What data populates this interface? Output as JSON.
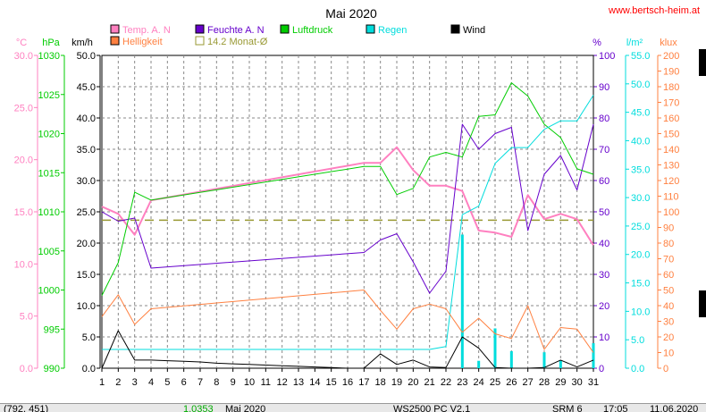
{
  "site": "www.bertsch-heim.at",
  "chart_data": {
    "type": "line",
    "title": "Mai 2020",
    "x": [
      1,
      2,
      3,
      4,
      5,
      6,
      7,
      8,
      9,
      10,
      11,
      12,
      13,
      14,
      15,
      16,
      17,
      18,
      19,
      20,
      21,
      22,
      23,
      24,
      25,
      26,
      27,
      28,
      29,
      30,
      31
    ],
    "x_ticks": [
      "1",
      "2",
      "3",
      "4",
      "5",
      "6",
      "7",
      "8",
      "9",
      "10",
      "11",
      "12",
      "13",
      "14",
      "15",
      "16",
      "17",
      "18",
      "19",
      "20",
      "21",
      "22",
      "23",
      "24",
      "25",
      "26",
      "27",
      "28",
      "29",
      "30",
      "31"
    ],
    "grid": true,
    "axes": {
      "temp": {
        "unit": "°C",
        "ylim": [
          0,
          30
        ],
        "ticks": [
          "0.0",
          "5.0",
          "10.0",
          "15.0",
          "20.0",
          "25.0",
          "30.0"
        ],
        "color": "#ff80c0"
      },
      "pressure": {
        "unit": "hPa",
        "ylim": [
          990,
          1030
        ],
        "ticks": [
          "990",
          "995",
          "1000",
          "1005",
          "1010",
          "1015",
          "1020",
          "1025",
          "1030"
        ],
        "color": "#00cc00"
      },
      "wind": {
        "unit": "km/h",
        "ylim": [
          0,
          50
        ],
        "ticks": [
          "0.0",
          "5.0",
          "10.0",
          "15.0",
          "20.0",
          "25.0",
          "30.0",
          "35.0",
          "40.0",
          "45.0",
          "50.0"
        ],
        "color": "#000000"
      },
      "humidity": {
        "unit": "%",
        "ylim": [
          0,
          100
        ],
        "ticks": [
          "0",
          "10",
          "20",
          "30",
          "40",
          "50",
          "60",
          "70",
          "80",
          "90",
          "100"
        ],
        "color": "#6600cc"
      },
      "rain": {
        "unit": "l/m²",
        "ylim": [
          0,
          55
        ],
        "ticks": [
          "0.0",
          "5.0",
          "10.0",
          "15.0",
          "20.0",
          "25.0",
          "30.0",
          "35.0",
          "40.0",
          "45.0",
          "50.0",
          "55.0"
        ],
        "color": "#00dddd"
      },
      "light": {
        "unit": "klux",
        "ylim": [
          0,
          200
        ],
        "ticks": [
          "0",
          "10",
          "20",
          "30",
          "40",
          "50",
          "60",
          "70",
          "80",
          "90",
          "100",
          "110",
          "120",
          "130",
          "140",
          "150",
          "160",
          "170",
          "180",
          "190",
          "200"
        ],
        "color": "#ff8040"
      }
    },
    "legend": [
      {
        "label": "Temp. A. N",
        "color": "#ff80c0",
        "style": "box"
      },
      {
        "label": "Feuchte A. N",
        "color": "#6600cc",
        "style": "box"
      },
      {
        "label": "Luftdruck",
        "color": "#00cc00",
        "style": "box"
      },
      {
        "label": "Regen",
        "color": "#00dddd",
        "style": "box"
      },
      {
        "label": "Wind",
        "color": "#000000",
        "style": "box"
      },
      {
        "label": "Helligkeit",
        "color": "#ff8040",
        "style": "box"
      },
      {
        "label": "14.2 Monat-Ø",
        "color": "#999933",
        "style": "outline"
      }
    ],
    "series": [
      {
        "name": "Temp. A. N",
        "axis": "temp",
        "color": "#ff80c0",
        "width": 2,
        "values": [
          15.5,
          14.8,
          12.8,
          16.1,
          null,
          null,
          null,
          null,
          null,
          null,
          null,
          null,
          null,
          null,
          null,
          null,
          19.7,
          19.7,
          21.2,
          19.0,
          17.5,
          17.5,
          17.0,
          13.2,
          13.0,
          12.6,
          16.6,
          14.3,
          14.8,
          14.3,
          11.8
        ]
      },
      {
        "name": "Feuchte A. N",
        "axis": "humidity",
        "color": "#6600cc",
        "width": 1,
        "values": [
          50,
          47,
          48,
          32,
          null,
          null,
          null,
          null,
          null,
          null,
          null,
          null,
          null,
          null,
          null,
          null,
          37,
          41,
          43,
          34,
          24,
          31,
          78,
          70,
          75,
          77,
          44,
          62,
          68,
          57,
          78
        ]
      },
      {
        "name": "Luftdruck",
        "axis": "pressure",
        "color": "#00cc00",
        "width": 1,
        "values": [
          999.3,
          1003.5,
          1012.5,
          1011.5,
          null,
          null,
          null,
          null,
          null,
          null,
          null,
          null,
          null,
          null,
          null,
          null,
          1015.8,
          1015.8,
          1012.2,
          1013.0,
          1017.0,
          1017.6,
          1017.0,
          1022.2,
          1022.4,
          1026.5,
          1024.8,
          1021.2,
          1019.5,
          1015.5,
          1014.8
        ]
      },
      {
        "name": "Regen",
        "axis": "rain",
        "color": "#00dddd",
        "width": 1,
        "values": [
          3.3,
          3.3,
          3.3,
          3.3,
          null,
          null,
          null,
          null,
          null,
          null,
          null,
          null,
          null,
          null,
          null,
          null,
          3.3,
          3.3,
          3.3,
          3.3,
          3.3,
          3.8,
          27.0,
          28.5,
          36.0,
          38.8,
          38.8,
          42.0,
          43.5,
          43.5,
          48.0
        ]
      },
      {
        "name": "Wind",
        "axis": "wind",
        "color": "#000000",
        "width": 1,
        "values": [
          0.0,
          6.0,
          1.3,
          1.3,
          1.2,
          1.1,
          1.0,
          0.8,
          0.7,
          0.6,
          0.5,
          0.4,
          0.3,
          0.2,
          0.1,
          0.0,
          0.0,
          2.3,
          0.6,
          1.3,
          0.2,
          0.1,
          5.0,
          3.2,
          0.1,
          0.0,
          0.0,
          0.1,
          1.3,
          0.2,
          1.3
        ]
      },
      {
        "name": "Helligkeit",
        "axis": "light",
        "color": "#ff8040",
        "width": 1,
        "values": [
          33,
          47,
          28,
          38,
          null,
          null,
          null,
          null,
          null,
          null,
          null,
          null,
          null,
          null,
          null,
          null,
          50,
          37,
          25,
          38,
          41,
          38,
          23,
          32,
          22,
          19,
          40,
          12,
          26,
          25,
          10
        ]
      }
    ],
    "bars": {
      "name": "Regen",
      "axis": "rain",
      "color": "#00dddd",
      "values": [
        0,
        0,
        0,
        0,
        0,
        0,
        0,
        0,
        0,
        0,
        0,
        0,
        0,
        0,
        0,
        0,
        0,
        0,
        0,
        0,
        0,
        0,
        23.5,
        1.3,
        7.0,
        3.0,
        0,
        2.8,
        1.4,
        0,
        4.4
      ]
    },
    "reference_line": {
      "label": "14.2 Monat-Ø",
      "axis": "temp",
      "value": 14.2,
      "color": "#999933"
    }
  },
  "status": {
    "fields": [
      "(792, 451)",
      "1.0353",
      "Mai 2020",
      "WS2500 PC V2.1",
      "SRM 6",
      "17:05",
      "11.06.2020"
    ]
  }
}
